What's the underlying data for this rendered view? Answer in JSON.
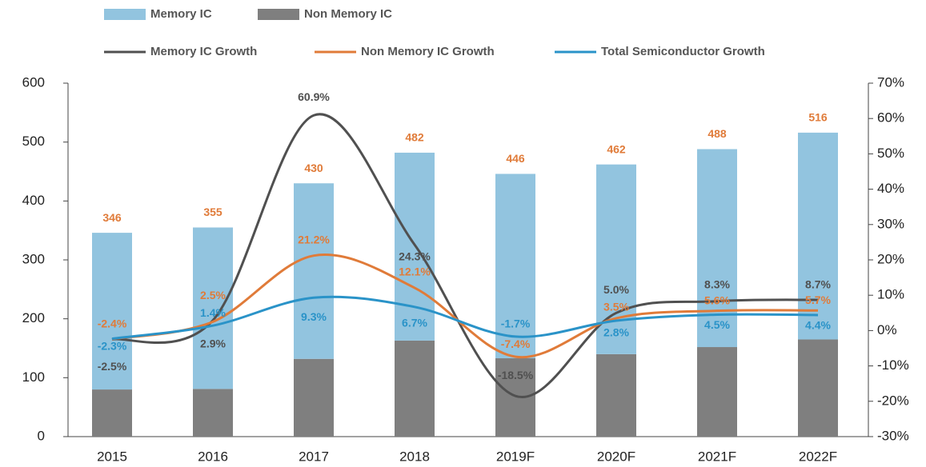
{
  "chart_data": {
    "type": "bar",
    "stacked": true,
    "categories": [
      "2015",
      "2016",
      "2017",
      "2018",
      "2019F",
      "2020F",
      "2021F",
      "2022F"
    ],
    "series": [
      {
        "name": "Non Memory IC",
        "type": "bar",
        "color": "#7f7f7f",
        "values": [
          80,
          81,
          132,
          163,
          133,
          140,
          152,
          165
        ]
      },
      {
        "name": "Memory IC",
        "type": "bar",
        "color": "#92c4df",
        "values": [
          266,
          274,
          298,
          319,
          313,
          322,
          336,
          351
        ]
      },
      {
        "name": "Memory IC Growth",
        "type": "line",
        "axis": "y2",
        "color": "#505050",
        "values": [
          -2.5,
          2.9,
          60.9,
          24.3,
          -18.5,
          5.0,
          8.3,
          8.7
        ],
        "value_labels": [
          "-2.5%",
          "2.9%",
          "60.9%",
          "24.3%",
          "-18.5%",
          "5.0%",
          "8.3%",
          "8.7%"
        ]
      },
      {
        "name": "Non Memory IC Growth",
        "type": "line",
        "axis": "y2",
        "color": "#e07b39",
        "values": [
          -2.4,
          2.5,
          21.2,
          12.1,
          -7.4,
          3.5,
          5.6,
          5.7
        ],
        "value_labels": [
          "-2.4%",
          "2.5%",
          "21.2%",
          "12.1%",
          "-7.4%",
          "3.5%",
          "5.6%",
          "5.7%"
        ]
      },
      {
        "name": "Total Semiconductor Growth",
        "type": "line",
        "axis": "y2",
        "color": "#2a93c8",
        "values": [
          -2.3,
          1.4,
          9.3,
          6.7,
          -1.7,
          2.8,
          4.5,
          4.4
        ],
        "value_labels": [
          "-2.3%",
          "1.4%",
          "9.3%",
          "6.7%",
          "-1.7%",
          "2.8%",
          "4.5%",
          "4.4%"
        ]
      }
    ],
    "totals": [
      346,
      355,
      430,
      482,
      446,
      462,
      488,
      516
    ],
    "totals_color": "#e07b39",
    "ylim": [
      0,
      600
    ],
    "yticks": [
      0,
      100,
      200,
      300,
      400,
      500,
      600
    ],
    "y2lim": [
      -30,
      70
    ],
    "y2ticks": [
      {
        "value": -30,
        "label": "-30%"
      },
      {
        "value": -20,
        "label": "-20%"
      },
      {
        "value": -10,
        "label": "-10%"
      },
      {
        "value": 0,
        "label": "0%"
      },
      {
        "value": 10,
        "label": "10%"
      },
      {
        "value": 20,
        "label": "20%"
      },
      {
        "value": 30,
        "label": "30%"
      },
      {
        "value": 40,
        "label": "40%"
      },
      {
        "value": 50,
        "label": "50%"
      },
      {
        "value": 60,
        "label": "60%"
      },
      {
        "value": 70,
        "label": "70%"
      }
    ]
  }
}
